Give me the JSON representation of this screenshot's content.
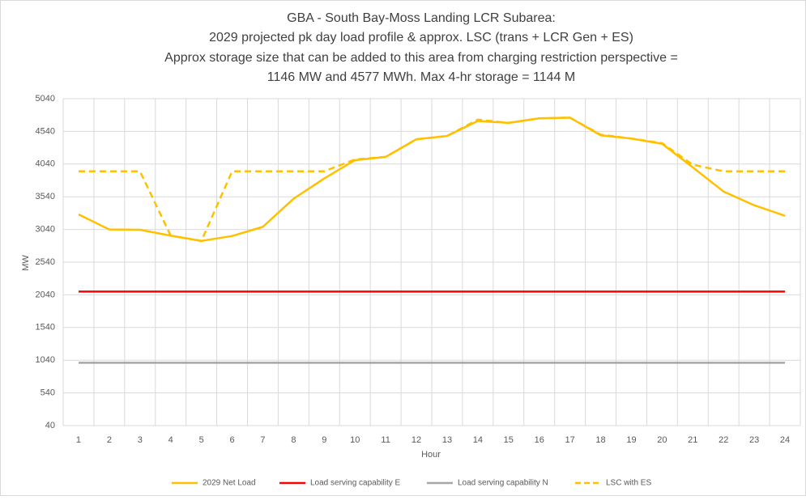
{
  "chart_data": {
    "type": "line",
    "title": [
      "GBA - South Bay-Moss Landing LCR Subarea:",
      "2029 projected pk day load profile & approx. LSC (trans + LCR Gen + ES)",
      "Approx storage size that can be added to this area from charging restriction perspective =",
      "1146 MW and 4577 MWh. Max 4-hr storage = 1144 M"
    ],
    "x_label": "Hour",
    "y_label": "MW",
    "categories": [
      1,
      2,
      3,
      4,
      5,
      6,
      7,
      8,
      9,
      10,
      11,
      12,
      13,
      14,
      15,
      16,
      17,
      18,
      19,
      20,
      21,
      22,
      23,
      24
    ],
    "series": [
      {
        "name": "2029 Net Load",
        "color": "#ffc000",
        "dashed": false,
        "values": [
          3270,
          3040,
          3035,
          2945,
          2865,
          2940,
          3080,
          3510,
          3820,
          4100,
          4150,
          4420,
          4470,
          4700,
          4670,
          4740,
          4750,
          4480,
          4430,
          4350,
          3990,
          3620,
          3410,
          3250
        ]
      },
      {
        "name": "Load serving capability E",
        "color": "#ff0000",
        "dashed": false,
        "values": [
          2090,
          2090,
          2090,
          2090,
          2090,
          2090,
          2090,
          2090,
          2090,
          2090,
          2090,
          2090,
          2090,
          2090,
          2090,
          2090,
          2090,
          2090,
          2090,
          2090,
          2090,
          2090,
          2090,
          2090
        ]
      },
      {
        "name": "Load serving capability N",
        "color": "#a6a6a6",
        "dashed": false,
        "values": [
          1000,
          1000,
          1000,
          1000,
          1000,
          1000,
          1000,
          1000,
          1000,
          1000,
          1000,
          1000,
          1000,
          1000,
          1000,
          1000,
          1000,
          1000,
          1000,
          1000,
          1000,
          1000,
          1000,
          1000
        ]
      },
      {
        "name": "LSC with ES",
        "color": "#ffc000",
        "dashed": true,
        "values": [
          3930,
          3930,
          3930,
          2945,
          2865,
          3930,
          3930,
          3930,
          3930,
          4110,
          4150,
          4420,
          4470,
          4720,
          4670,
          4740,
          4750,
          4490,
          4430,
          4360,
          4030,
          3930,
          3930,
          3930
        ]
      }
    ],
    "ylim": [
      40,
      5040
    ],
    "yticks": [
      40,
      540,
      1040,
      1540,
      2040,
      2540,
      3040,
      3540,
      4040,
      4540,
      5040
    ],
    "grid": true,
    "legend": "bottom"
  }
}
